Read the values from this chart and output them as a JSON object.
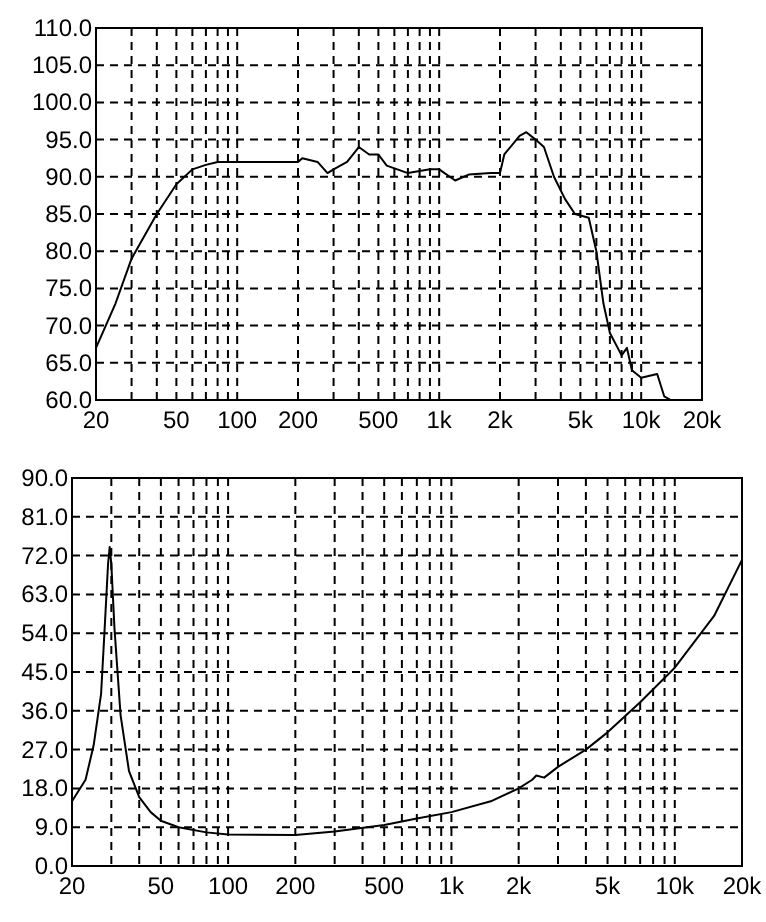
{
  "chart_data": [
    {
      "type": "line",
      "log": "x",
      "grid": true,
      "xlim": [
        20,
        20000
      ],
      "ylim": [
        60,
        110
      ],
      "xticks": [
        20,
        {
          "value": 30,
          "label": null
        },
        {
          "value": 40,
          "label": null
        },
        50,
        {
          "value": 60,
          "label": null
        },
        {
          "value": 70,
          "label": null
        },
        {
          "value": 80,
          "label": null
        },
        {
          "value": 90,
          "label": null
        },
        100,
        200,
        {
          "value": 300,
          "label": null
        },
        {
          "value": 400,
          "label": null
        },
        500,
        {
          "value": 600,
          "label": null
        },
        {
          "value": 700,
          "label": null
        },
        {
          "value": 800,
          "label": null
        },
        {
          "value": 900,
          "label": null
        },
        {
          "value": 1000,
          "label": "1k"
        },
        {
          "value": 2000,
          "label": "2k"
        },
        {
          "value": 3000,
          "label": null
        },
        {
          "value": 4000,
          "label": null
        },
        {
          "value": 5000,
          "label": "5k"
        },
        {
          "value": 6000,
          "label": null
        },
        {
          "value": 7000,
          "label": null
        },
        {
          "value": 8000,
          "label": null
        },
        {
          "value": 9000,
          "label": null
        },
        {
          "value": 10000,
          "label": "10k"
        },
        {
          "value": 20000,
          "label": "20k"
        }
      ],
      "yticks": [
        {
          "value": 60,
          "label": "60.0"
        },
        {
          "value": 65,
          "label": "65.0"
        },
        {
          "value": 70,
          "label": "70.0"
        },
        {
          "value": 75,
          "label": "75.0"
        },
        {
          "value": 80,
          "label": "80.0"
        },
        {
          "value": 85,
          "label": "85.0"
        },
        {
          "value": 90,
          "label": "90.0"
        },
        {
          "value": 95,
          "label": "95.0"
        },
        {
          "value": 100,
          "label": "100.0"
        },
        {
          "value": 105,
          "label": "105.0"
        },
        {
          "value": 110,
          "label": "110.0"
        }
      ],
      "x": [
        20,
        25,
        30,
        40,
        50,
        60,
        70,
        80,
        100,
        150,
        200,
        210,
        250,
        280,
        300,
        350,
        400,
        450,
        500,
        550,
        700,
        900,
        1000,
        1200,
        1400,
        1800,
        2000,
        2100,
        2500,
        2700,
        3000,
        3300,
        3700,
        4200,
        4700,
        5500,
        6000,
        6500,
        7000,
        8000,
        8500,
        9000,
        10000,
        12000,
        13000,
        14000
      ],
      "series": [
        {
          "color": "#000000",
          "values": [
            67,
            73,
            79,
            85,
            89,
            91,
            91.6,
            92,
            92,
            92,
            92,
            92.5,
            92,
            90.5,
            91,
            92,
            94,
            93,
            93,
            91.5,
            90.5,
            91,
            91,
            89.5,
            90.3,
            90.5,
            90.5,
            93,
            95.5,
            96,
            95,
            94,
            90,
            87,
            85,
            84.5,
            80,
            73,
            69,
            66,
            67,
            64,
            63,
            63.5,
            60.5,
            60
          ]
        }
      ]
    },
    {
      "type": "line",
      "log": "x",
      "grid": true,
      "xlim": [
        20,
        20000
      ],
      "ylim": [
        0,
        90
      ],
      "xticks": [
        20,
        {
          "value": 30,
          "label": null
        },
        {
          "value": 40,
          "label": null
        },
        50,
        {
          "value": 60,
          "label": null
        },
        {
          "value": 70,
          "label": null
        },
        {
          "value": 80,
          "label": null
        },
        {
          "value": 90,
          "label": null
        },
        100,
        200,
        {
          "value": 300,
          "label": null
        },
        {
          "value": 400,
          "label": null
        },
        500,
        {
          "value": 600,
          "label": null
        },
        {
          "value": 700,
          "label": null
        },
        {
          "value": 800,
          "label": null
        },
        {
          "value": 900,
          "label": null
        },
        {
          "value": 1000,
          "label": "1k"
        },
        {
          "value": 2000,
          "label": "2k"
        },
        {
          "value": 3000,
          "label": null
        },
        {
          "value": 4000,
          "label": null
        },
        {
          "value": 5000,
          "label": "5k"
        },
        {
          "value": 6000,
          "label": null
        },
        {
          "value": 7000,
          "label": null
        },
        {
          "value": 8000,
          "label": null
        },
        {
          "value": 9000,
          "label": null
        },
        {
          "value": 10000,
          "label": "10k"
        },
        {
          "value": 20000,
          "label": "20k"
        }
      ],
      "yticks": [
        {
          "value": 0,
          "label": "0.0"
        },
        {
          "value": 9,
          "label": "9.0"
        },
        {
          "value": 18,
          "label": "18.0"
        },
        {
          "value": 27,
          "label": "27.0"
        },
        {
          "value": 36,
          "label": "36.0"
        },
        {
          "value": 45,
          "label": "45.0"
        },
        {
          "value": 54,
          "label": "54.0"
        },
        {
          "value": 63,
          "label": "63.0"
        },
        {
          "value": 72,
          "label": "72.0"
        },
        {
          "value": 81,
          "label": "81.0"
        },
        {
          "value": 90,
          "label": "90.0"
        }
      ],
      "x": [
        20,
        23,
        25,
        27,
        28,
        29,
        29.5,
        30,
        31,
        33,
        36,
        40,
        45,
        50,
        60,
        80,
        100,
        200,
        300,
        500,
        700,
        1000,
        1500,
        2000,
        2300,
        2400,
        2600,
        3000,
        4000,
        5000,
        7000,
        10000,
        15000,
        20000
      ],
      "series": [
        {
          "color": "#000000",
          "values": [
            15,
            20,
            28,
            40,
            55,
            70,
            74,
            70,
            55,
            35,
            22,
            16,
            12.5,
            10.5,
            9,
            7.8,
            7.3,
            7.2,
            8,
            9.5,
            11,
            12.5,
            15,
            18,
            20,
            21,
            20.5,
            23,
            27,
            31,
            38,
            46,
            58,
            71
          ]
        }
      ]
    }
  ]
}
